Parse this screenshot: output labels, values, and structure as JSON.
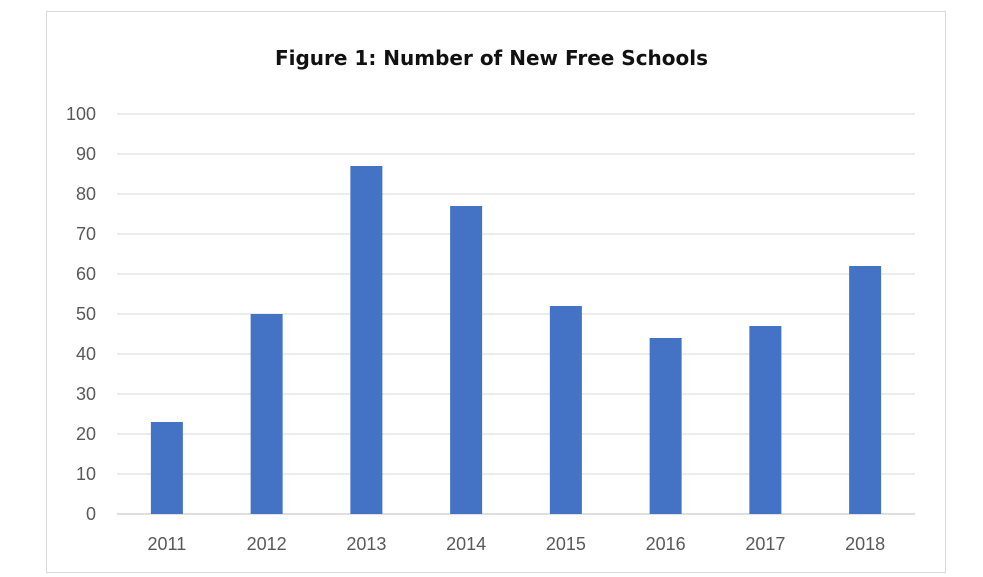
{
  "chart_data": {
    "type": "bar",
    "title": "Figure 1: Number of New Free Schools",
    "xlabel": "",
    "ylabel": "",
    "categories": [
      "2011",
      "2012",
      "2013",
      "2014",
      "2015",
      "2016",
      "2017",
      "2018"
    ],
    "values": [
      23,
      50,
      87,
      77,
      52,
      44,
      47,
      62
    ],
    "ylim": [
      0,
      100
    ],
    "yticks": [
      "0",
      "10",
      "20",
      "30",
      "40",
      "50",
      "60",
      "70",
      "80",
      "90",
      "100"
    ],
    "grid": true,
    "legend": "none",
    "bar_color": "#4472C4"
  }
}
